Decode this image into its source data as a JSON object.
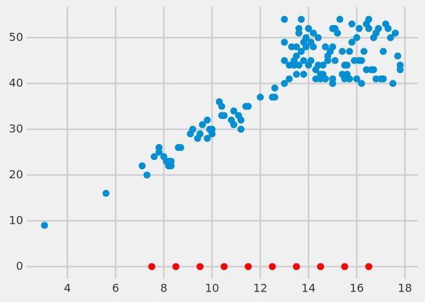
{
  "chart_data": {
    "type": "scatter",
    "series": [
      {
        "color": "#008fd5",
        "x": [
          3.05,
          5.6,
          7.1,
          7.3,
          7.6,
          7.8,
          7.8,
          8.0,
          8.1,
          8.2,
          8.2,
          8.3,
          8.3,
          8.6,
          8.7,
          9.1,
          9.2,
          9.4,
          9.5,
          9.6,
          9.8,
          9.8,
          9.9,
          10.0,
          10.0,
          10.3,
          10.4,
          10.4,
          10.5,
          10.8,
          10.9,
          10.9,
          11.1,
          11.2,
          11.2,
          11.4,
          11.5,
          12.0,
          12.5,
          12.6,
          12.6,
          13.0,
          13.0,
          13.0,
          13.0,
          13.2,
          13.2,
          13.3,
          13.4,
          13.4,
          13.5,
          13.5,
          13.5,
          13.6,
          13.6,
          13.6,
          13.7,
          13.7,
          13.8,
          13.8,
          13.8,
          13.9,
          13.9,
          14.0,
          14.0,
          14.1,
          14.1,
          14.2,
          14.2,
          14.3,
          14.3,
          14.4,
          14.4,
          14.5,
          14.5,
          14.6,
          14.6,
          14.7,
          14.7,
          14.8,
          14.8,
          14.9,
          15.0,
          15.0,
          15.0,
          15.0,
          15.1,
          15.1,
          15.2,
          15.3,
          15.4,
          15.4,
          15.5,
          15.5,
          15.6,
          15.6,
          15.7,
          15.7,
          15.8,
          15.8,
          15.9,
          16.0,
          16.0,
          16.1,
          16.1,
          16.2,
          16.2,
          16.3,
          16.4,
          16.4,
          16.5,
          16.5,
          16.6,
          16.7,
          16.7,
          16.8,
          16.8,
          16.9,
          17.0,
          17.1,
          17.1,
          17.2,
          17.3,
          17.4,
          17.5,
          17.6,
          17.7,
          17.8,
          17.8
        ],
        "values": [
          9,
          16,
          22,
          20,
          24,
          25,
          26,
          24,
          23,
          22,
          23,
          22,
          23,
          26,
          26,
          29,
          30,
          28,
          29,
          31,
          28,
          32,
          30,
          29,
          30,
          36,
          35,
          33,
          33,
          32,
          34,
          31,
          33,
          32,
          30,
          35,
          35,
          37,
          37,
          37,
          39,
          40,
          45,
          49,
          54,
          41,
          44,
          48,
          45,
          44,
          48,
          42,
          46,
          51,
          52,
          44,
          47,
          54,
          42,
          45,
          49,
          48,
          50,
          52,
          44,
          45,
          49,
          51,
          48,
          41,
          43,
          50,
          44,
          41,
          42,
          42,
          44,
          48,
          41,
          46,
          45,
          47,
          52,
          40,
          41,
          48,
          52,
          45,
          51,
          54,
          42,
          47,
          41,
          44,
          42,
          44,
          41,
          47,
          53,
          49,
          45,
          41,
          50,
          52,
          45,
          40,
          45,
          47,
          43,
          53,
          54,
          52,
          43,
          50,
          43,
          51,
          41,
          52,
          41,
          47,
          41,
          53,
          52,
          50,
          40,
          51,
          46,
          44,
          43
        ]
      },
      {
        "color": "#ff0000",
        "x": [
          7.5,
          8.5,
          9.5,
          10.5,
          11.5,
          12.5,
          13.5,
          14.5,
          15.5,
          16.5
        ],
        "values": [
          0,
          0,
          0,
          0,
          0,
          0,
          0,
          0,
          0,
          0
        ]
      }
    ],
    "xlim": [
      2.31,
      18.54
    ],
    "ylim": [
      -2.7,
      56.7
    ],
    "xticks": [
      4,
      6,
      8,
      10,
      12,
      14,
      16,
      18
    ],
    "yticks": [
      0,
      10,
      20,
      30,
      40,
      50
    ],
    "grid": true
  }
}
